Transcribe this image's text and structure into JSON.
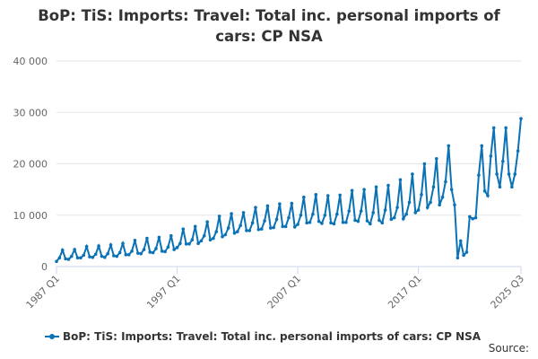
{
  "chart_data": {
    "type": "line",
    "title": "BoP: TiS: Imports: Travel: Total inc. personal imports of cars: CP NSA",
    "source": "Source:",
    "categories": [
      "1987 Q1",
      null,
      null,
      null,
      null,
      null,
      null,
      null,
      null,
      null,
      null,
      null,
      null,
      null,
      null,
      null,
      null,
      null,
      null,
      null,
      null,
      null,
      null,
      null,
      null,
      null,
      null,
      null,
      null,
      null,
      null,
      null,
      null,
      null,
      null,
      null,
      null,
      null,
      null,
      null,
      "1997 Q1",
      null,
      null,
      null,
      null,
      null,
      null,
      null,
      null,
      null,
      null,
      null,
      null,
      null,
      null,
      null,
      null,
      null,
      null,
      null,
      null,
      null,
      null,
      null,
      null,
      null,
      null,
      null,
      null,
      null,
      null,
      null,
      null,
      null,
      null,
      null,
      null,
      null,
      null,
      null,
      "2007 Q1",
      null,
      null,
      null,
      null,
      null,
      null,
      null,
      null,
      null,
      null,
      null,
      null,
      null,
      null,
      null,
      null,
      null,
      null,
      null,
      null,
      null,
      null,
      null,
      null,
      null,
      null,
      null,
      null,
      null,
      null,
      null,
      null,
      null,
      null,
      null,
      null,
      null,
      null,
      null,
      "2017 Q1",
      null,
      null,
      null,
      null,
      null,
      null,
      null,
      null,
      null,
      null,
      null,
      null,
      null,
      null,
      null,
      null,
      null,
      null,
      null,
      null,
      null,
      null,
      null,
      null,
      null,
      null,
      null,
      null,
      null,
      null,
      null,
      null,
      null,
      "2025 Q3"
    ],
    "series": [
      {
        "name": "BoP: TiS: Imports: Travel: Total inc. personal imports of cars: CP NSA",
        "color": "#0b72b5",
        "values": [
          1000,
          1700,
          3200,
          1500,
          1400,
          2000,
          3300,
          1700,
          1700,
          2200,
          3900,
          1900,
          1800,
          2400,
          4000,
          2000,
          1800,
          2500,
          4200,
          2100,
          2000,
          2700,
          4500,
          2300,
          2300,
          3000,
          5100,
          2600,
          2500,
          3300,
          5500,
          2800,
          2700,
          3500,
          5700,
          3000,
          2900,
          3800,
          6000,
          3300,
          3700,
          4500,
          7300,
          4400,
          4400,
          5200,
          7800,
          4500,
          5000,
          6000,
          8700,
          5200,
          5500,
          6800,
          9800,
          5800,
          6200,
          7500,
          10300,
          6500,
          6800,
          8000,
          10500,
          7000,
          7000,
          8500,
          11500,
          7200,
          7300,
          8900,
          11800,
          7500,
          7600,
          9200,
          12200,
          7800,
          7800,
          9500,
          12300,
          7700,
          8200,
          10000,
          13500,
          8500,
          8600,
          10200,
          14000,
          8800,
          8400,
          10000,
          13800,
          8500,
          8300,
          10200,
          13900,
          8600,
          8600,
          10800,
          14800,
          9000,
          8800,
          10800,
          15000,
          8900,
          8300,
          10500,
          15500,
          9000,
          8500,
          11000,
          15800,
          9200,
          9500,
          11500,
          16900,
          9300,
          10200,
          12500,
          18000,
          10500,
          11000,
          14000,
          20000,
          11500,
          12500,
          15500,
          21000,
          12000,
          13500,
          16500,
          23500,
          15000,
          12000,
          1700,
          5000,
          2200,
          2800,
          9700,
          9300,
          9500,
          17800,
          23500,
          14700,
          13800,
          21500,
          27000,
          18000,
          15500,
          20500,
          27000,
          18000,
          15500,
          18000,
          22500,
          28800
        ]
      }
    ],
    "ylim": [
      0,
      40000
    ],
    "yticks": [
      0,
      {
        "value": 10000,
        "label": "10 000"
      },
      {
        "value": 20000,
        "label": "20 000"
      },
      {
        "value": 30000,
        "label": "30 000"
      },
      {
        "value": 40000,
        "label": "40 000"
      }
    ],
    "grid": true
  }
}
